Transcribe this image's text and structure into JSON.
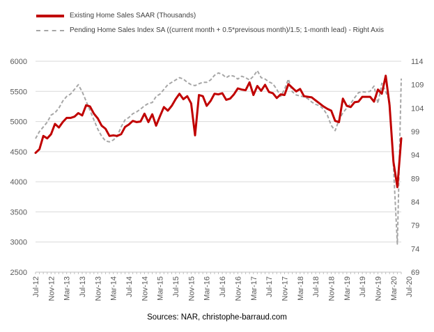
{
  "source": "Sources: NAR, christophe-barraud.com",
  "chart_data": {
    "type": "line",
    "title": "",
    "xlabel": "",
    "ylabel": "",
    "legend_position": "top-left",
    "grid": true,
    "x_tick_labels": [
      "Jul-12",
      "Nov-12",
      "Mar-13",
      "Jul-13",
      "Nov-13",
      "Mar-14",
      "Jul-14",
      "Nov-14",
      "Mar-15",
      "Jul-15",
      "Nov-15",
      "Mar-16",
      "Jul-16",
      "Nov-16",
      "Mar-17",
      "Jul-17",
      "Nov-17",
      "Mar-18",
      "Jul-18",
      "Nov-18",
      "Mar-19",
      "Jul-19",
      "Nov-19",
      "Mar-20",
      "Jul-20"
    ],
    "y_left_ticks": [
      "2500",
      "3000",
      "3500",
      "4000",
      "4500",
      "5000",
      "5500",
      "6000"
    ],
    "y_right_ticks": [
      "69",
      "74",
      "79",
      "84",
      "89",
      "94",
      "99",
      "104",
      "109",
      "114"
    ],
    "ylim_left": [
      2500,
      6000
    ],
    "ylim_right": [
      69,
      114
    ],
    "series": [
      {
        "name": "Existing Home Sales SAAR (Thousands)",
        "axis": "left",
        "color": "#c00000",
        "style": "solid",
        "values": [
          4480,
          4540,
          4760,
          4720,
          4790,
          4960,
          4900,
          4990,
          5060,
          5060,
          5080,
          5140,
          5100,
          5270,
          5250,
          5130,
          5050,
          4930,
          4880,
          4760,
          4770,
          4760,
          4790,
          4910,
          4950,
          5010,
          4990,
          5000,
          5130,
          4990,
          5120,
          4930,
          5090,
          5240,
          5180,
          5260,
          5370,
          5460,
          5370,
          5420,
          5300,
          4770,
          5440,
          5420,
          5260,
          5340,
          5460,
          5450,
          5470,
          5360,
          5380,
          5450,
          5550,
          5530,
          5520,
          5650,
          5440,
          5590,
          5510,
          5610,
          5490,
          5470,
          5390,
          5450,
          5440,
          5620,
          5560,
          5500,
          5540,
          5420,
          5410,
          5400,
          5350,
          5300,
          5250,
          5210,
          5180,
          5010,
          4990,
          5380,
          5260,
          5240,
          5320,
          5330,
          5410,
          5410,
          5410,
          5330,
          5530,
          5460,
          5760,
          5270,
          4330,
          3910,
          4720
        ]
      },
      {
        "name": "Pending Home Sales Index SA ((current month + 0.5*previsous month)/1.5; 1-month lead) - Right Axis",
        "axis": "right",
        "color": "#a6a6a6",
        "style": "dashed",
        "values": [
          97.5,
          99,
          100,
          101,
          102.5,
          103,
          104,
          105.5,
          106.5,
          107,
          108,
          109,
          107.5,
          105.5,
          103.5,
          101.5,
          99.5,
          98,
          97,
          96.8,
          97.2,
          98,
          100,
          101.5,
          102,
          102.8,
          103.2,
          103.8,
          104.5,
          105,
          105.2,
          106.5,
          107,
          108,
          109,
          109.5,
          110,
          110.5,
          110.2,
          109.5,
          109,
          108.8,
          109.2,
          109.5,
          109.5,
          110,
          111,
          111.5,
          111.2,
          110.5,
          111,
          110.8,
          110.2,
          110.8,
          110.5,
          110,
          110.8,
          112,
          110.5,
          110.2,
          109.6,
          109.2,
          108,
          106.5,
          108,
          110.2,
          107.5,
          106.8,
          106.6,
          106.4,
          106,
          105.3,
          104.8,
          104.5,
          103.8,
          102.5,
          100.3,
          99.2,
          101.5,
          103,
          104,
          105,
          106.2,
          107.3,
          107.5,
          107.4,
          107.6,
          108.7,
          105,
          109.3,
          107.5,
          105.5,
          91.5,
          75,
          110.3
        ]
      }
    ]
  }
}
